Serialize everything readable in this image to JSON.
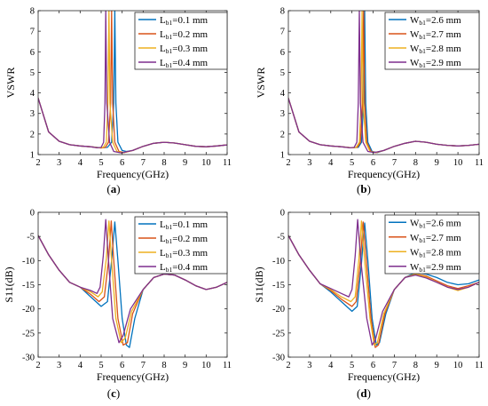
{
  "chart_data": [
    {
      "type": "line",
      "panel": "a",
      "caption": "(a)",
      "xlabel": "Frequency(GHz)",
      "ylabel": "VSWR",
      "xlim": [
        2,
        11
      ],
      "ylim": [
        1,
        8
      ],
      "xticks": [
        2,
        3,
        4,
        5,
        6,
        7,
        8,
        9,
        10,
        11
      ],
      "yticks": [
        1,
        2,
        3,
        4,
        5,
        6,
        7,
        8
      ],
      "grid": false,
      "legend_position": "top-right",
      "series": [
        {
          "name": "Lb1=0.1 mm",
          "label_base": "L",
          "label_sub": "b1",
          "label_rest": "=0.1 mm",
          "color": "#0072BD",
          "x": [
            2.0,
            2.5,
            3.0,
            3.5,
            4.0,
            4.5,
            5.0,
            5.3,
            5.5,
            5.6,
            5.65,
            5.7,
            5.8,
            6.0,
            6.2,
            6.5,
            7.0,
            7.5,
            8.0,
            8.5,
            9.0,
            9.5,
            10.0,
            10.5,
            11.0
          ],
          "y": [
            3.75,
            2.1,
            1.65,
            1.48,
            1.42,
            1.38,
            1.33,
            1.35,
            1.6,
            3.5,
            8.0,
            3.5,
            1.6,
            1.2,
            1.15,
            1.2,
            1.4,
            1.55,
            1.6,
            1.56,
            1.48,
            1.4,
            1.38,
            1.42,
            1.47
          ]
        },
        {
          "name": "Lb1=0.2 mm",
          "label_base": "L",
          "label_sub": "b1",
          "label_rest": "=0.2 mm",
          "color": "#D95319",
          "x": [
            2.0,
            2.5,
            3.0,
            3.5,
            4.0,
            4.5,
            5.0,
            5.2,
            5.35,
            5.45,
            5.5,
            5.55,
            5.65,
            5.85,
            6.1,
            6.5,
            7.0,
            7.5,
            8.0,
            8.5,
            9.0,
            9.5,
            10.0,
            10.5,
            11.0
          ],
          "y": [
            3.75,
            2.1,
            1.65,
            1.48,
            1.42,
            1.38,
            1.32,
            1.35,
            1.6,
            3.5,
            8.0,
            3.5,
            1.6,
            1.15,
            1.1,
            1.2,
            1.4,
            1.55,
            1.6,
            1.56,
            1.48,
            1.4,
            1.38,
            1.42,
            1.47
          ]
        },
        {
          "name": "Lb1=0.3 mm",
          "label_base": "L",
          "label_sub": "b1",
          "label_rest": "=0.3 mm",
          "color": "#EDB120",
          "x": [
            2.0,
            2.5,
            3.0,
            3.5,
            4.0,
            4.5,
            4.9,
            5.1,
            5.25,
            5.32,
            5.37,
            5.42,
            5.55,
            5.75,
            6.0,
            6.5,
            7.0,
            7.5,
            8.0,
            8.5,
            9.0,
            9.5,
            10.0,
            10.5,
            11.0
          ],
          "y": [
            3.75,
            2.1,
            1.65,
            1.48,
            1.42,
            1.38,
            1.33,
            1.35,
            1.6,
            3.5,
            8.0,
            3.5,
            1.6,
            1.15,
            1.08,
            1.2,
            1.4,
            1.55,
            1.6,
            1.56,
            1.48,
            1.4,
            1.38,
            1.42,
            1.47
          ]
        },
        {
          "name": "Lb1=0.4 mm",
          "label_base": "L",
          "label_sub": "b1",
          "label_rest": "=0.4 mm",
          "color": "#7E2F8E",
          "x": [
            2.0,
            2.5,
            3.0,
            3.5,
            4.0,
            4.5,
            4.8,
            5.0,
            5.12,
            5.18,
            5.22,
            5.27,
            5.4,
            5.6,
            5.95,
            6.5,
            7.0,
            7.5,
            8.0,
            8.5,
            9.0,
            9.5,
            10.0,
            10.5,
            11.0
          ],
          "y": [
            3.75,
            2.1,
            1.65,
            1.48,
            1.42,
            1.38,
            1.33,
            1.35,
            1.6,
            3.5,
            8.0,
            3.5,
            1.6,
            1.15,
            1.08,
            1.2,
            1.4,
            1.55,
            1.6,
            1.56,
            1.48,
            1.4,
            1.38,
            1.42,
            1.47
          ]
        }
      ]
    },
    {
      "type": "line",
      "panel": "b",
      "caption": "(b)",
      "xlabel": "Frequency(GHz)",
      "ylabel": "VSWR",
      "xlim": [
        2,
        11
      ],
      "ylim": [
        1,
        8
      ],
      "xticks": [
        2,
        3,
        4,
        5,
        6,
        7,
        8,
        9,
        10,
        11
      ],
      "yticks": [
        1,
        2,
        3,
        4,
        5,
        6,
        7,
        8
      ],
      "grid": false,
      "legend_position": "top-right",
      "series": [
        {
          "name": "Wb1=2.6 mm",
          "label_base": "W",
          "label_sub": "b1",
          "label_rest": "=2.6 mm",
          "color": "#0072BD",
          "x": [
            2.0,
            2.5,
            3.0,
            3.5,
            4.0,
            4.5,
            5.0,
            5.3,
            5.45,
            5.55,
            5.6,
            5.65,
            5.75,
            5.95,
            6.2,
            6.5,
            7.0,
            7.5,
            8.0,
            8.5,
            9.0,
            9.5,
            10.0,
            10.5,
            11.0
          ],
          "y": [
            3.75,
            2.1,
            1.65,
            1.48,
            1.42,
            1.38,
            1.33,
            1.35,
            1.6,
            3.5,
            8.0,
            3.5,
            1.6,
            1.15,
            1.1,
            1.2,
            1.4,
            1.55,
            1.65,
            1.6,
            1.5,
            1.45,
            1.42,
            1.45,
            1.5
          ]
        },
        {
          "name": "Wb1=2.7 mm",
          "label_base": "W",
          "label_sub": "b1",
          "label_rest": "=2.7 mm",
          "color": "#D95319",
          "x": [
            2.0,
            2.5,
            3.0,
            3.5,
            4.0,
            4.5,
            5.0,
            5.25,
            5.4,
            5.5,
            5.55,
            5.6,
            5.7,
            5.9,
            6.15,
            6.5,
            7.0,
            7.5,
            8.0,
            8.5,
            9.0,
            9.5,
            10.0,
            10.5,
            11.0
          ],
          "y": [
            3.75,
            2.1,
            1.65,
            1.48,
            1.42,
            1.38,
            1.33,
            1.35,
            1.6,
            3.5,
            8.0,
            3.5,
            1.6,
            1.15,
            1.1,
            1.2,
            1.4,
            1.55,
            1.65,
            1.6,
            1.5,
            1.45,
            1.42,
            1.45,
            1.5
          ]
        },
        {
          "name": "Wb1=2.8 mm",
          "label_base": "W",
          "label_sub": "b1",
          "label_rest": "=2.8 mm",
          "color": "#EDB120",
          "x": [
            2.0,
            2.5,
            3.0,
            3.5,
            4.0,
            4.5,
            5.0,
            5.2,
            5.35,
            5.43,
            5.48,
            5.53,
            5.65,
            5.85,
            6.1,
            6.5,
            7.0,
            7.5,
            8.0,
            8.5,
            9.0,
            9.5,
            10.0,
            10.5,
            11.0
          ],
          "y": [
            3.75,
            2.1,
            1.65,
            1.48,
            1.42,
            1.38,
            1.33,
            1.35,
            1.6,
            3.5,
            8.0,
            3.5,
            1.6,
            1.15,
            1.1,
            1.2,
            1.4,
            1.55,
            1.65,
            1.6,
            1.5,
            1.45,
            1.42,
            1.45,
            1.5
          ]
        },
        {
          "name": "Wb1=2.9 mm",
          "label_base": "W",
          "label_sub": "b1",
          "label_rest": "=2.9 mm",
          "color": "#7E2F8E",
          "x": [
            2.0,
            2.5,
            3.0,
            3.5,
            4.0,
            4.5,
            4.9,
            5.1,
            5.23,
            5.3,
            5.35,
            5.4,
            5.52,
            5.75,
            6.05,
            6.5,
            7.0,
            7.5,
            8.0,
            8.5,
            9.0,
            9.5,
            10.0,
            10.5,
            11.0
          ],
          "y": [
            3.75,
            2.1,
            1.65,
            1.48,
            1.42,
            1.38,
            1.33,
            1.35,
            1.6,
            3.5,
            8.0,
            3.5,
            1.6,
            1.15,
            1.1,
            1.2,
            1.4,
            1.55,
            1.65,
            1.6,
            1.5,
            1.45,
            1.42,
            1.45,
            1.5
          ]
        }
      ]
    },
    {
      "type": "line",
      "panel": "c",
      "caption": "(c)",
      "xlabel": "Frequency(GHz)",
      "ylabel": "S11(dB)",
      "xlim": [
        2,
        11
      ],
      "ylim": [
        -30,
        0
      ],
      "xticks": [
        2,
        3,
        4,
        5,
        6,
        7,
        8,
        9,
        10,
        11
      ],
      "yticks": [
        -30,
        -25,
        -20,
        -15,
        -10,
        -5,
        0
      ],
      "grid": false,
      "legend_position": "top-right",
      "series": [
        {
          "name": "Lb1=0.1 mm",
          "label_base": "L",
          "label_sub": "b1",
          "label_rest": "=0.1 mm",
          "color": "#0072BD",
          "x": [
            2.0,
            2.5,
            3.0,
            3.5,
            4.0,
            4.5,
            5.0,
            5.3,
            5.5,
            5.65,
            5.8,
            6.0,
            6.2,
            6.35,
            6.6,
            7.0,
            7.5,
            8.0,
            8.5,
            9.0,
            9.5,
            10.0,
            10.5,
            11.0
          ],
          "y": [
            -4.8,
            -8.8,
            -12.0,
            -14.5,
            -15.5,
            -17.5,
            -19.5,
            -18.5,
            -10.0,
            -2.0,
            -10.0,
            -22.0,
            -27.5,
            -28.0,
            -22.0,
            -16.0,
            -13.5,
            -12.8,
            -13.0,
            -14.0,
            -15.2,
            -16.0,
            -15.5,
            -14.5
          ]
        },
        {
          "name": "Lb1=0.2 mm",
          "label_base": "L",
          "label_sub": "b1",
          "label_rest": "=0.2 mm",
          "color": "#D95319",
          "x": [
            2.0,
            2.5,
            3.0,
            3.5,
            4.0,
            4.5,
            4.9,
            5.15,
            5.35,
            5.48,
            5.6,
            5.8,
            6.05,
            6.25,
            6.5,
            7.0,
            7.5,
            8.0,
            8.5,
            9.0,
            9.5,
            10.0,
            10.5,
            11.0
          ],
          "y": [
            -4.8,
            -8.8,
            -12.0,
            -14.5,
            -15.5,
            -17.0,
            -18.5,
            -17.5,
            -10.0,
            -1.8,
            -10.0,
            -22.0,
            -27.5,
            -27.0,
            -21.0,
            -16.0,
            -13.5,
            -12.8,
            -13.0,
            -14.0,
            -15.2,
            -16.0,
            -15.5,
            -14.5
          ]
        },
        {
          "name": "Lb1=0.3 mm",
          "label_base": "L",
          "label_sub": "b1",
          "label_rest": "=0.3 mm",
          "color": "#EDB120",
          "x": [
            2.0,
            2.5,
            3.0,
            3.5,
            4.0,
            4.5,
            4.85,
            5.05,
            5.25,
            5.37,
            5.5,
            5.7,
            5.95,
            6.15,
            6.45,
            7.0,
            7.5,
            8.0,
            8.5,
            9.0,
            9.5,
            10.0,
            10.5,
            11.0
          ],
          "y": [
            -4.8,
            -8.8,
            -12.0,
            -14.5,
            -15.5,
            -16.5,
            -17.5,
            -16.5,
            -9.5,
            -1.8,
            -10.0,
            -22.0,
            -27.0,
            -26.0,
            -20.5,
            -16.0,
            -13.5,
            -12.8,
            -13.0,
            -14.0,
            -15.2,
            -16.0,
            -15.5,
            -14.5
          ]
        },
        {
          "name": "Lb1=0.4 mm",
          "label_base": "L",
          "label_sub": "b1",
          "label_rest": "=0.4 mm",
          "color": "#7E2F8E",
          "x": [
            2.0,
            2.5,
            3.0,
            3.5,
            4.0,
            4.5,
            4.8,
            4.95,
            5.1,
            5.22,
            5.35,
            5.55,
            5.85,
            6.05,
            6.4,
            7.0,
            7.5,
            8.0,
            8.5,
            9.0,
            9.5,
            10.0,
            10.5,
            11.0
          ],
          "y": [
            -4.8,
            -8.8,
            -12.0,
            -14.5,
            -15.5,
            -16.2,
            -16.8,
            -15.5,
            -9.0,
            -1.5,
            -10.0,
            -22.0,
            -27.0,
            -25.5,
            -20.0,
            -16.0,
            -13.5,
            -12.8,
            -13.0,
            -14.0,
            -15.2,
            -16.0,
            -15.5,
            -14.5
          ]
        }
      ]
    },
    {
      "type": "line",
      "panel": "d",
      "caption": "(d)",
      "xlabel": "Frequency(GHz)",
      "ylabel": "S11(dB)",
      "xlim": [
        2,
        11
      ],
      "ylim": [
        -30,
        0
      ],
      "xticks": [
        2,
        3,
        4,
        5,
        6,
        7,
        8,
        9,
        10,
        11
      ],
      "yticks": [
        -30,
        -25,
        -20,
        -15,
        -10,
        -5,
        0
      ],
      "grid": false,
      "legend_position": "top-right",
      "series": [
        {
          "name": "Wb1=2.6 mm",
          "label_base": "W",
          "label_sub": "b1",
          "label_rest": "=2.6 mm",
          "color": "#0072BD",
          "x": [
            2.0,
            2.5,
            3.0,
            3.5,
            4.0,
            4.5,
            5.0,
            5.25,
            5.45,
            5.6,
            5.75,
            5.95,
            6.15,
            6.3,
            6.6,
            7.0,
            7.5,
            8.0,
            8.5,
            9.0,
            9.5,
            10.0,
            10.5,
            11.0
          ],
          "y": [
            -4.8,
            -8.8,
            -12.0,
            -14.8,
            -16.5,
            -18.5,
            -20.5,
            -19.5,
            -10.5,
            -2.2,
            -10.0,
            -22.0,
            -27.5,
            -27.0,
            -21.0,
            -16.0,
            -13.5,
            -12.5,
            -12.8,
            -13.5,
            -14.5,
            -15.0,
            -14.8,
            -14.0
          ]
        },
        {
          "name": "Wb1=2.7 mm",
          "label_base": "W",
          "label_sub": "b1",
          "label_rest": "=2.7 mm",
          "color": "#D95319",
          "x": [
            2.0,
            2.5,
            3.0,
            3.5,
            4.0,
            4.5,
            5.0,
            5.2,
            5.4,
            5.53,
            5.68,
            5.9,
            6.1,
            6.25,
            6.55,
            7.0,
            7.5,
            8.0,
            8.5,
            9.0,
            9.5,
            10.0,
            10.5,
            11.0
          ],
          "y": [
            -4.8,
            -8.8,
            -12.0,
            -14.8,
            -16.2,
            -18.0,
            -19.5,
            -18.5,
            -10.0,
            -2.0,
            -10.0,
            -22.0,
            -28.0,
            -27.5,
            -21.0,
            -16.0,
            -13.5,
            -12.8,
            -13.2,
            -14.2,
            -15.2,
            -15.8,
            -15.2,
            -14.5
          ]
        },
        {
          "name": "Wb1=2.8 mm",
          "label_base": "W",
          "label_sub": "b1",
          "label_rest": "=2.8 mm",
          "color": "#EDB120",
          "x": [
            2.0,
            2.5,
            3.0,
            3.5,
            4.0,
            4.5,
            4.95,
            5.15,
            5.33,
            5.45,
            5.6,
            5.85,
            6.05,
            6.2,
            6.5,
            7.0,
            7.5,
            8.0,
            8.5,
            9.0,
            9.5,
            10.0,
            10.5,
            11.0
          ],
          "y": [
            -4.8,
            -8.8,
            -12.0,
            -14.8,
            -16.0,
            -17.5,
            -18.5,
            -17.5,
            -9.5,
            -1.8,
            -10.0,
            -22.0,
            -27.5,
            -27.0,
            -21.0,
            -16.0,
            -13.5,
            -12.8,
            -13.4,
            -14.5,
            -15.5,
            -16.2,
            -15.5,
            -14.5
          ]
        },
        {
          "name": "Wb1=2.9 mm",
          "label_base": "W",
          "label_sub": "b1",
          "label_rest": "=2.9 mm",
          "color": "#7E2F8E",
          "x": [
            2.0,
            2.5,
            3.0,
            3.5,
            4.0,
            4.5,
            4.85,
            5.0,
            5.15,
            5.27,
            5.42,
            5.7,
            5.95,
            6.1,
            6.45,
            7.0,
            7.5,
            8.0,
            8.5,
            9.0,
            9.5,
            10.0,
            10.5,
            11.0
          ],
          "y": [
            -4.8,
            -8.8,
            -12.0,
            -14.8,
            -15.8,
            -16.8,
            -17.5,
            -16.0,
            -9.0,
            -1.5,
            -10.0,
            -22.0,
            -27.5,
            -26.5,
            -20.5,
            -16.0,
            -13.5,
            -13.0,
            -13.6,
            -14.5,
            -15.5,
            -16.0,
            -15.5,
            -14.5
          ]
        }
      ]
    }
  ]
}
